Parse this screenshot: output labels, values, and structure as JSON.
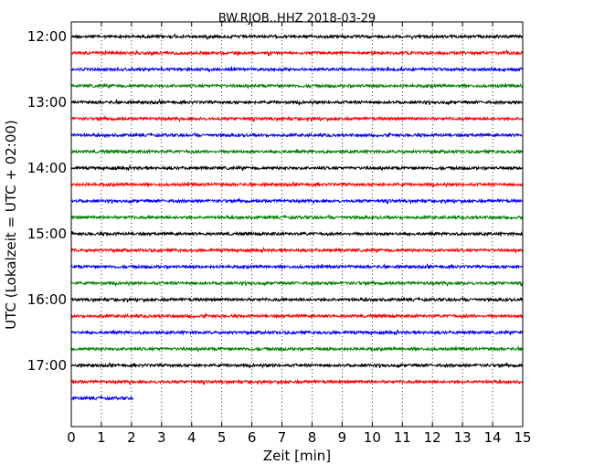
{
  "chart_data": {
    "type": "line",
    "title": "BW.RJOB..HHZ 2018-03-29",
    "xlabel": "Zeit  [min]",
    "ylabel": "UTC (Lokalzeit = UTC + 02:00)",
    "xlim": [
      0,
      15
    ],
    "x_ticks": [
      "0",
      "1",
      "2",
      "3",
      "4",
      "5",
      "6",
      "7",
      "8",
      "9",
      "10",
      "11",
      "12",
      "13",
      "14",
      "15"
    ],
    "y_ticks": [
      "12:00",
      "13:00",
      "14:00",
      "15:00",
      "16:00",
      "17:00"
    ],
    "grid": "vertical dotted",
    "trace_colors": [
      "#000000",
      "#ff0000",
      "#0000ff",
      "#008000"
    ],
    "traces": [
      {
        "start": "12:00",
        "end_min": 15
      },
      {
        "start": "12:15",
        "end_min": 15
      },
      {
        "start": "12:30",
        "end_min": 15
      },
      {
        "start": "12:45",
        "end_min": 15
      },
      {
        "start": "13:00",
        "end_min": 15
      },
      {
        "start": "13:15",
        "end_min": 15
      },
      {
        "start": "13:30",
        "end_min": 15
      },
      {
        "start": "13:45",
        "end_min": 15
      },
      {
        "start": "14:00",
        "end_min": 15
      },
      {
        "start": "14:15",
        "end_min": 15
      },
      {
        "start": "14:30",
        "end_min": 15
      },
      {
        "start": "14:45",
        "end_min": 15
      },
      {
        "start": "15:00",
        "end_min": 15
      },
      {
        "start": "15:15",
        "end_min": 15
      },
      {
        "start": "15:30",
        "end_min": 15
      },
      {
        "start": "15:45",
        "end_min": 15
      },
      {
        "start": "16:00",
        "end_min": 15
      },
      {
        "start": "16:15",
        "end_min": 15
      },
      {
        "start": "16:30",
        "end_min": 15
      },
      {
        "start": "16:45",
        "end_min": 15
      },
      {
        "start": "17:00",
        "end_min": 15
      },
      {
        "start": "17:15",
        "end_min": 15
      },
      {
        "start": "17:30",
        "end_min": 2.05
      }
    ]
  }
}
